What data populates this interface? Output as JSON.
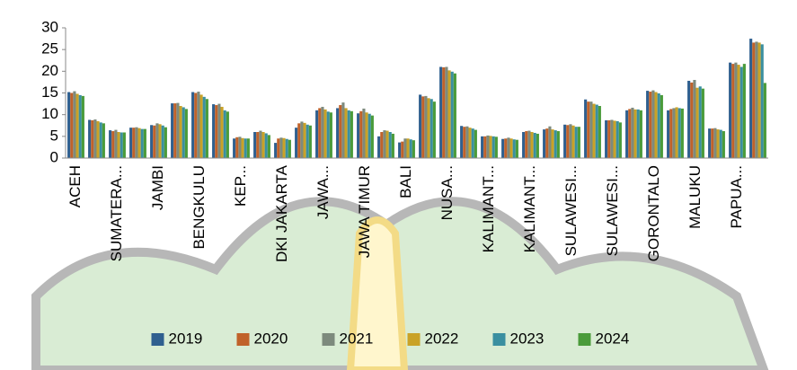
{
  "chart_data": {
    "type": "bar",
    "categories": [
      "ACEH",
      null,
      "SUMATERA...",
      null,
      "JAMBI",
      null,
      "BENGKULU",
      null,
      "KEP...",
      null,
      "DKI JAKARTA",
      null,
      "JAWA...",
      null,
      "JAWA TIMUR",
      null,
      "BALI",
      null,
      "NUSA...",
      null,
      "KALIMANT...",
      null,
      "KALIMANT...",
      null,
      "SULAWESI...",
      null,
      "SULAWESI...",
      null,
      "GORONTALO",
      null,
      "MALUKU",
      null,
      "PAPUA...",
      null
    ],
    "series": [
      {
        "name": "2019",
        "color": "#2f5f8f",
        "values": [
          15.2,
          8.8,
          6.4,
          7.0,
          7.6,
          12.6,
          15.2,
          12.4,
          4.5,
          6.0,
          3.5,
          7.0,
          11.0,
          11.5,
          10.3,
          5.0,
          3.6,
          14.6,
          21.0,
          7.4,
          5.0,
          4.4,
          6.0,
          6.6,
          7.7,
          13.5,
          8.7,
          11.0,
          15.5,
          11.0,
          17.8,
          6.8,
          22.0,
          27.5
        ]
      },
      {
        "name": "2020",
        "color": "#c0622a",
        "values": [
          15.0,
          8.7,
          6.2,
          7.0,
          7.5,
          12.6,
          15.0,
          12.2,
          4.8,
          6.0,
          4.5,
          8.0,
          11.5,
          12.2,
          10.8,
          6.0,
          3.8,
          14.2,
          20.9,
          7.2,
          5.0,
          4.5,
          6.2,
          6.8,
          7.6,
          13.0,
          8.7,
          11.3,
          15.3,
          11.3,
          17.4,
          6.8,
          21.7,
          26.6
        ]
      },
      {
        "name": "2021",
        "color": "#7d8a7d",
        "values": [
          15.4,
          8.9,
          6.5,
          7.1,
          8.0,
          12.7,
          15.3,
          12.5,
          4.9,
          6.3,
          4.7,
          8.4,
          11.8,
          12.8,
          11.4,
          6.4,
          4.5,
          14.3,
          21.0,
          7.3,
          5.2,
          4.7,
          6.3,
          7.3,
          7.8,
          13.0,
          8.8,
          11.6,
          15.6,
          11.5,
          18.0,
          6.9,
          22.0,
          26.8
        ]
      },
      {
        "name": "2022",
        "color": "#c9a227",
        "values": [
          14.8,
          8.5,
          6.0,
          6.9,
          7.8,
          12.0,
          14.6,
          11.8,
          4.6,
          6.0,
          4.6,
          8.1,
          11.2,
          11.5,
          10.5,
          6.3,
          4.5,
          13.8,
          20.2,
          7.0,
          5.1,
          4.5,
          6.0,
          6.6,
          7.5,
          12.5,
          8.6,
          11.2,
          15.2,
          11.7,
          16.2,
          6.6,
          21.5,
          26.6
        ]
      },
      {
        "name": "2023",
        "color": "#3a8fa0",
        "values": [
          14.5,
          8.2,
          5.9,
          6.7,
          7.5,
          11.7,
          14.1,
          11.0,
          4.5,
          5.7,
          4.4,
          7.7,
          10.7,
          11.0,
          10.2,
          6.0,
          4.3,
          13.6,
          19.9,
          6.8,
          5.0,
          4.3,
          5.8,
          6.4,
          7.2,
          12.3,
          8.5,
          11.2,
          14.9,
          11.5,
          16.5,
          6.5,
          21.0,
          26.2
        ]
      },
      {
        "name": "2024",
        "color": "#4a9b3a",
        "values": [
          14.3,
          8.0,
          5.9,
          6.7,
          7.1,
          11.3,
          13.6,
          10.7,
          4.5,
          5.3,
          4.2,
          7.5,
          10.5,
          10.8,
          9.8,
          5.6,
          4.1,
          13.0,
          19.5,
          6.5,
          4.9,
          4.2,
          5.6,
          6.2,
          7.2,
          12.0,
          8.2,
          11.0,
          14.5,
          11.4,
          16.0,
          6.2,
          21.7,
          17.3
        ]
      }
    ],
    "ylim": [
      0,
      30
    ],
    "yticks": [
      0,
      5,
      10,
      15,
      20,
      25,
      30
    ],
    "grid": false,
    "legend": "bottom"
  }
}
